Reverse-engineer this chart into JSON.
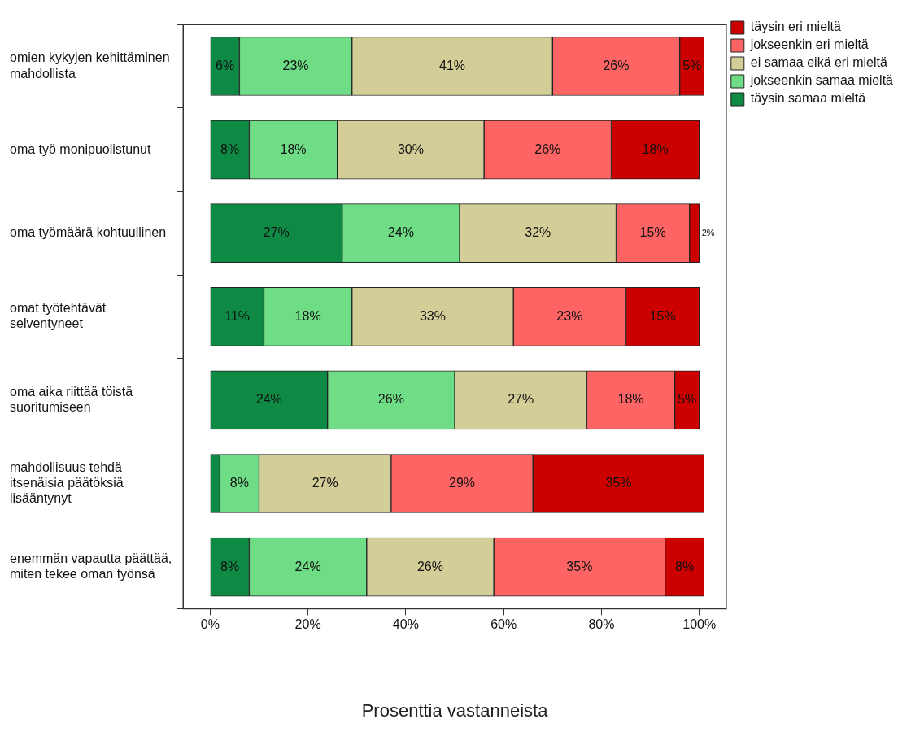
{
  "chart_data": {
    "type": "bar",
    "orientation": "horizontal",
    "stacked": true,
    "categories": [
      "omien kykyjen kehittäminen\nmahdollista",
      "oma työ monipuolistunut",
      "oma työmäärä kohtuullinen",
      "omat työtehtävät\nselventyneet",
      "oma aika riittää töistä\nsuoritumiseen",
      "mahdollisuus tehdä\nitsenäisia päätöksiä\nlisääntynyt",
      "enemmän vapautta päättää,\nmiten tekee oman työnsä"
    ],
    "series": [
      {
        "name": "täysin samaa mieltä",
        "color": "#0e8a45",
        "values": [
          6,
          8,
          27,
          11,
          24,
          2,
          8
        ],
        "value_labels": [
          "6%",
          "8%",
          "27%",
          "11%",
          "24%",
          null,
          "8%"
        ]
      },
      {
        "name": "jokseenkin samaa mieltä",
        "color": "#6fdc86",
        "values": [
          23,
          18,
          24,
          18,
          26,
          8,
          24
        ],
        "value_labels": [
          "23%",
          "18%",
          "24%",
          "18%",
          "26%",
          "8%",
          "24%"
        ]
      },
      {
        "name": "ei samaa eikä eri mieltä",
        "color": "#d3ce98",
        "values": [
          41,
          30,
          32,
          33,
          27,
          27,
          26
        ],
        "value_labels": [
          "41%",
          "30%",
          "32%",
          "33%",
          "27%",
          "27%",
          "26%"
        ]
      },
      {
        "name": "jokseenkin eri mieltä",
        "color": "#fe6464",
        "values": [
          26,
          26,
          15,
          23,
          18,
          29,
          35
        ],
        "value_labels": [
          "26%",
          "26%",
          "15%",
          "23%",
          "18%",
          "29%",
          "35%"
        ]
      },
      {
        "name": "täysin eri mieltä",
        "color": "#cc0000",
        "values": [
          5,
          18,
          2,
          15,
          5,
          35,
          8
        ],
        "value_labels": [
          "5%",
          "18%",
          "2%",
          "15%",
          "5%",
          "35%",
          "8%"
        ]
      }
    ],
    "xlim": [
      -5.5,
      105.5
    ],
    "xticks": [
      {
        "value": 0,
        "label": "0%"
      },
      {
        "value": 20,
        "label": "20%"
      },
      {
        "value": 40,
        "label": "40%"
      },
      {
        "value": 60,
        "label": "60%"
      },
      {
        "value": 80,
        "label": "80%"
      },
      {
        "value": 100,
        "label": "100%"
      }
    ],
    "xlabel": "Prosenttia vastanneista",
    "grid": false,
    "legend": "top right"
  }
}
